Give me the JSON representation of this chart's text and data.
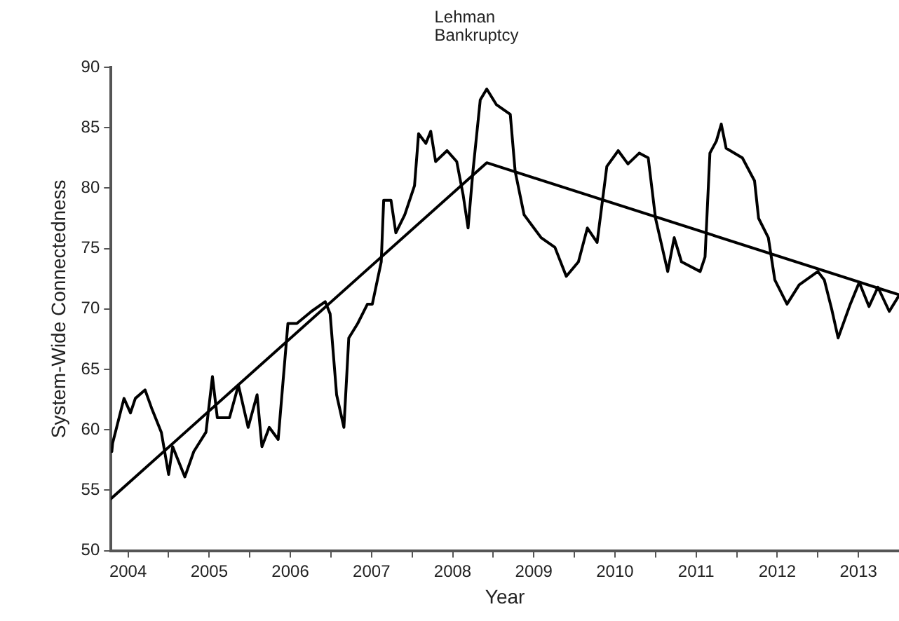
{
  "chart_data": {
    "type": "line",
    "xlabel": "Year",
    "ylabel": "System-Wide Connectedness",
    "annotations": [
      "Lehman Bankruptcy"
    ],
    "xlim": [
      2004.29,
      2014.0
    ],
    "xticks": [
      {
        "value": 2004.5,
        "label": "2004"
      },
      {
        "value": 2005,
        "label": null
      },
      {
        "value": 2005.5,
        "label": "2005"
      },
      {
        "value": 2006,
        "label": null
      },
      {
        "value": 2006.5,
        "label": "2006"
      },
      {
        "value": 2007,
        "label": null
      },
      {
        "value": 2007.5,
        "label": "2007"
      },
      {
        "value": 2008,
        "label": null
      },
      {
        "value": 2008.5,
        "label": "2008"
      },
      {
        "value": 2009,
        "label": null
      },
      {
        "value": 2009.5,
        "label": "2009"
      },
      {
        "value": 2010,
        "label": null
      },
      {
        "value": 2010.5,
        "label": "2010"
      },
      {
        "value": 2011,
        "label": null
      },
      {
        "value": 2011.5,
        "label": "2011"
      },
      {
        "value": 2012,
        "label": null
      },
      {
        "value": 2012.5,
        "label": "2012"
      },
      {
        "value": 2013,
        "label": null
      },
      {
        "value": 2013.5,
        "label": "2013"
      }
    ],
    "ylim": [
      50,
      90
    ],
    "yticks": [
      50,
      55,
      60,
      65,
      70,
      75,
      80,
      85,
      90
    ],
    "grid": false,
    "legend": false,
    "marker": "none",
    "line_style": "solid",
    "series": [
      {
        "color": "#000000",
        "x": [
          2004.3,
          2004.31,
          2004.45,
          2004.53,
          2004.59,
          2004.71,
          2004.79,
          2004.91,
          2005.0,
          2005.05,
          2005.2,
          2005.31,
          2005.46,
          2005.54,
          2005.6,
          2005.75,
          2005.86,
          2005.98,
          2006.09,
          2006.15,
          2006.24,
          2006.35,
          2006.47,
          2006.58,
          2006.76,
          2006.93,
          2006.99,
          2007.07,
          2007.16,
          2007.22,
          2007.33,
          2007.45,
          2007.51,
          2007.62,
          2007.65,
          2007.74,
          2007.8,
          2007.91,
          2008.03,
          2008.08,
          2008.17,
          2008.23,
          2008.29,
          2008.43,
          2008.55,
          2008.63,
          2008.69,
          2008.75,
          2008.84,
          2008.92,
          2009.04,
          2009.21,
          2009.27,
          2009.38,
          2009.59,
          2009.76,
          2009.9,
          2010.05,
          2010.16,
          2010.28,
          2010.4,
          2010.54,
          2010.66,
          2010.8,
          2010.91,
          2011.0,
          2011.15,
          2011.23,
          2011.32,
          2011.55,
          2011.61,
          2011.67,
          2011.75,
          2011.81,
          2011.87,
          2012.07,
          2012.22,
          2012.27,
          2012.39,
          2012.47,
          2012.62,
          2012.77,
          2013.0,
          2013.08,
          2013.17,
          2013.25,
          2013.4,
          2013.51,
          2013.63,
          2013.74,
          2013.88,
          2013.99
        ],
        "values": [
          58.2,
          58.9,
          62.6,
          61.4,
          62.6,
          63.3,
          61.8,
          59.8,
          56.3,
          58.6,
          56.1,
          58.2,
          59.8,
          64.4,
          61.0,
          61.0,
          63.7,
          60.2,
          62.9,
          58.6,
          60.2,
          59.2,
          68.8,
          68.8,
          69.8,
          70.6,
          69.6,
          62.9,
          60.2,
          67.6,
          68.8,
          70.4,
          70.4,
          73.9,
          79.0,
          79.0,
          76.3,
          77.8,
          80.2,
          84.5,
          83.7,
          84.7,
          82.2,
          83.1,
          82.2,
          79.4,
          76.7,
          81.4,
          87.3,
          88.2,
          86.9,
          86.1,
          81.4,
          77.8,
          75.9,
          75.1,
          72.7,
          73.9,
          76.7,
          75.5,
          81.8,
          83.1,
          82.0,
          82.9,
          82.5,
          77.5,
          73.1,
          75.9,
          73.9,
          73.1,
          74.3,
          82.9,
          83.9,
          85.3,
          83.3,
          82.5,
          80.6,
          77.5,
          75.9,
          72.4,
          70.4,
          72.0,
          73.1,
          72.4,
          70.0,
          67.6,
          70.4,
          72.2,
          70.2,
          71.8,
          69.8,
          71.0
        ]
      },
      {
        "color": "#000000",
        "x": [
          2004.29,
          2008.92,
          2013.99
        ],
        "values": [
          54.3,
          82.1,
          71.2
        ]
      }
    ]
  }
}
